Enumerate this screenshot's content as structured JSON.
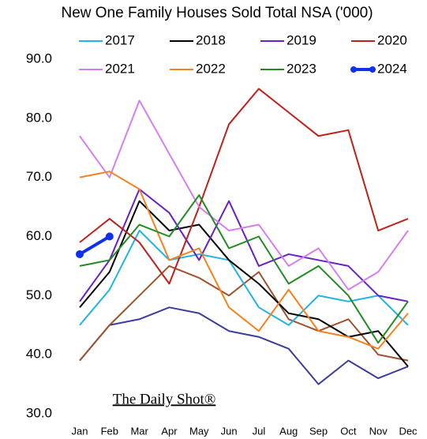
{
  "chart_data": {
    "type": "line",
    "title": "New One Family Houses Sold Total NSA ('000)",
    "watermark": "The Daily Shot®",
    "categories": [
      "Jan",
      "Feb",
      "Mar",
      "Apr",
      "May",
      "Jun",
      "Jul",
      "Aug",
      "Sep",
      "Oct",
      "Nov",
      "Dec"
    ],
    "ylim": [
      30,
      90
    ],
    "yticks": [
      {
        "value": 30,
        "label": "30.0"
      },
      {
        "value": 40,
        "label": "40.0"
      },
      {
        "value": 50,
        "label": "50.0"
      },
      {
        "value": 60,
        "label": "60.0"
      },
      {
        "value": 70,
        "label": "70.0"
      },
      {
        "value": 80,
        "label": "80.0"
      },
      {
        "value": 90,
        "label": "90.0"
      }
    ],
    "grid": false,
    "series": [
      {
        "color": "#3d3d99",
        "values": [
          39,
          45,
          46,
          48,
          47,
          44,
          43,
          41,
          35,
          39,
          36,
          38
        ]
      },
      {
        "color": "#a0522d",
        "values": [
          39,
          45,
          50,
          55,
          53,
          50,
          54,
          46,
          44,
          46,
          40,
          39
        ]
      },
      {
        "name": "2017",
        "color": "#1eb4e6",
        "values": [
          45,
          51,
          61,
          56,
          57,
          56,
          48,
          45,
          50,
          49,
          50,
          45
        ]
      },
      {
        "name": "2018",
        "color": "#000000",
        "values": [
          48,
          54,
          66,
          61,
          62,
          56,
          52,
          47,
          46,
          43,
          44,
          38
        ]
      },
      {
        "name": "2019",
        "color": "#6a1fc8",
        "values": [
          49,
          56,
          68,
          64,
          56,
          66,
          55,
          57,
          56,
          55,
          50,
          49
        ]
      },
      {
        "name": "2020",
        "color": "#c0201a",
        "values": [
          59,
          63,
          59,
          52,
          65,
          79,
          85,
          81,
          77,
          78,
          61,
          63
        ]
      },
      {
        "name": "2021",
        "color": "#d67ef0",
        "values": [
          77,
          70,
          83,
          74,
          65,
          61,
          62,
          55,
          58,
          51,
          54,
          61
        ]
      },
      {
        "name": "2022",
        "color": "#f5821f",
        "values": [
          70,
          71,
          68,
          56,
          58,
          48,
          44,
          51,
          44,
          43,
          41,
          47
        ]
      },
      {
        "name": "2023",
        "color": "#228b22",
        "values": [
          55,
          56,
          62,
          60,
          67,
          58,
          60,
          52,
          55,
          50,
          42,
          49
        ]
      },
      {
        "name": "2024",
        "color": "#1030f0",
        "values": [
          57,
          60,
          null,
          null,
          null,
          null,
          null,
          null,
          null,
          null,
          null,
          null
        ]
      }
    ]
  }
}
